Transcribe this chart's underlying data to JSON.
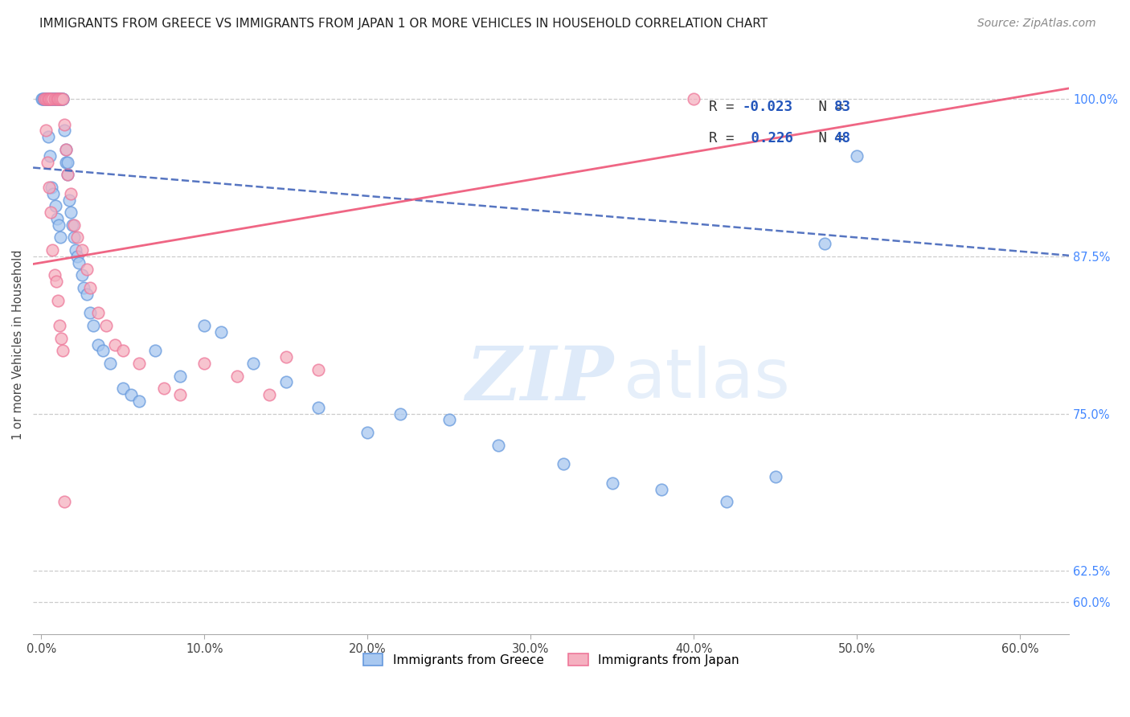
{
  "title": "IMMIGRANTS FROM GREECE VS IMMIGRANTS FROM JAPAN 1 OR MORE VEHICLES IN HOUSEHOLD CORRELATION CHART",
  "source": "Source: ZipAtlas.com",
  "xlabel_vals": [
    0.0,
    10.0,
    20.0,
    30.0,
    40.0,
    50.0,
    60.0
  ],
  "ylabel": "1 or more Vehicles in Household",
  "ylabel_vals": [
    60.0,
    62.5,
    75.0,
    87.5,
    100.0
  ],
  "ylim": [
    57.5,
    103.5
  ],
  "xlim": [
    -0.5,
    63.0
  ],
  "greece_R": "-0.023",
  "greece_N": "83",
  "japan_R": "0.226",
  "japan_N": "48",
  "greece_color": "#A8C8F0",
  "japan_color": "#F5B0C0",
  "greece_edge_color": "#6699DD",
  "japan_edge_color": "#EE7799",
  "trendline_greece_color": "#4466BB",
  "trendline_japan_color": "#EE5577",
  "legend_label_greece": "Immigrants from Greece",
  "legend_label_japan": "Immigrants from Japan",
  "watermark_zip": "ZIP",
  "watermark_atlas": "atlas",
  "greece_x": [
    0.1,
    0.2,
    0.3,
    0.3,
    0.4,
    0.4,
    0.5,
    0.5,
    0.5,
    0.6,
    0.6,
    0.6,
    0.7,
    0.7,
    0.7,
    0.8,
    0.8,
    0.8,
    0.9,
    0.9,
    1.0,
    1.0,
    1.0,
    1.0,
    1.1,
    1.1,
    1.2,
    1.2,
    1.3,
    1.3,
    1.4,
    1.5,
    1.5,
    1.6,
    1.6,
    1.7,
    1.8,
    1.9,
    2.0,
    2.1,
    2.2,
    2.3,
    2.5,
    2.6,
    2.8,
    3.0,
    3.2,
    3.5,
    3.8,
    4.2,
    5.0,
    5.5,
    6.0,
    7.0,
    8.5,
    10.0,
    11.0,
    13.0,
    15.0,
    17.0,
    20.0,
    22.0,
    25.0,
    28.0,
    32.0,
    35.0,
    38.0,
    42.0,
    45.0,
    48.0,
    50.0,
    0.05,
    0.15,
    0.25,
    0.35,
    0.45,
    0.55,
    0.65,
    0.75,
    0.85,
    0.95,
    1.05,
    1.15
  ],
  "greece_y": [
    100.0,
    100.0,
    100.0,
    100.0,
    100.0,
    100.0,
    100.0,
    100.0,
    100.0,
    100.0,
    100.0,
    100.0,
    100.0,
    100.0,
    100.0,
    100.0,
    100.0,
    100.0,
    100.0,
    100.0,
    100.0,
    100.0,
    100.0,
    100.0,
    100.0,
    100.0,
    100.0,
    100.0,
    100.0,
    100.0,
    97.5,
    96.0,
    95.0,
    95.0,
    94.0,
    92.0,
    91.0,
    90.0,
    89.0,
    88.0,
    87.5,
    87.0,
    86.0,
    85.0,
    84.5,
    83.0,
    82.0,
    80.5,
    80.0,
    79.0,
    77.0,
    76.5,
    76.0,
    80.0,
    78.0,
    82.0,
    81.5,
    79.0,
    77.5,
    75.5,
    73.5,
    75.0,
    74.5,
    72.5,
    71.0,
    69.5,
    69.0,
    68.0,
    70.0,
    88.5,
    95.5,
    100.0,
    100.0,
    100.0,
    100.0,
    97.0,
    95.5,
    93.0,
    92.5,
    91.5,
    90.5,
    90.0,
    89.0
  ],
  "japan_x": [
    0.2,
    0.3,
    0.4,
    0.5,
    0.5,
    0.6,
    0.7,
    0.8,
    0.9,
    1.0,
    1.0,
    1.1,
    1.2,
    1.3,
    1.4,
    1.5,
    1.6,
    1.8,
    2.0,
    2.2,
    2.5,
    2.8,
    3.0,
    3.5,
    4.0,
    4.5,
    5.0,
    6.0,
    7.5,
    8.5,
    10.0,
    12.0,
    14.0,
    15.0,
    17.0,
    0.3,
    0.4,
    0.5,
    0.6,
    0.7,
    0.8,
    0.9,
    1.0,
    1.1,
    1.2,
    1.3,
    1.4,
    40.0
  ],
  "japan_y": [
    100.0,
    100.0,
    100.0,
    100.0,
    100.0,
    100.0,
    100.0,
    100.0,
    100.0,
    100.0,
    100.0,
    100.0,
    100.0,
    100.0,
    98.0,
    96.0,
    94.0,
    92.5,
    90.0,
    89.0,
    88.0,
    86.5,
    85.0,
    83.0,
    82.0,
    80.5,
    80.0,
    79.0,
    77.0,
    76.5,
    79.0,
    78.0,
    76.5,
    79.5,
    78.5,
    97.5,
    95.0,
    93.0,
    91.0,
    88.0,
    86.0,
    85.5,
    84.0,
    82.0,
    81.0,
    80.0,
    68.0,
    100.0
  ]
}
